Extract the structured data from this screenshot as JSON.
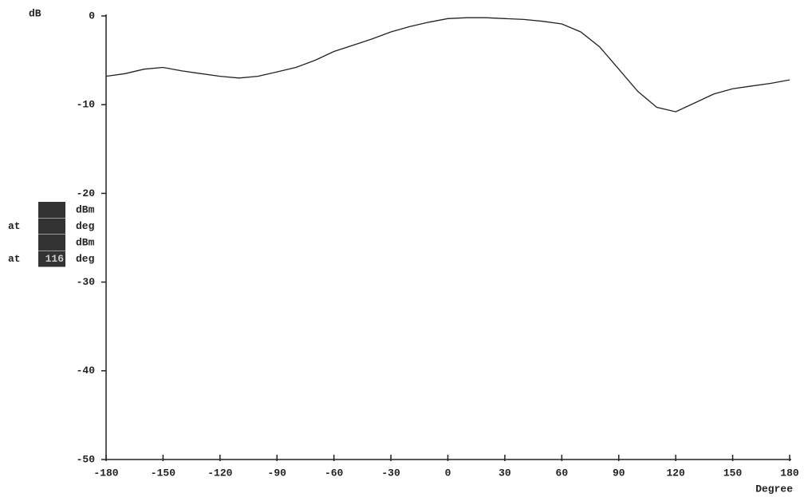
{
  "chart_data": {
    "type": "line",
    "y_label": "dB",
    "x_label": "Degree",
    "x": [
      -180,
      -170,
      -160,
      -150,
      -140,
      -130,
      -120,
      -110,
      -100,
      -90,
      -80,
      -70,
      -60,
      -50,
      -40,
      -30,
      -20,
      -10,
      0,
      10,
      20,
      30,
      40,
      50,
      60,
      70,
      80,
      90,
      100,
      110,
      120,
      130,
      140,
      150,
      160,
      170,
      180
    ],
    "series": [
      {
        "color": "#222222",
        "values": [
          -6.8,
          -6.5,
          -6.0,
          -5.8,
          -6.2,
          -6.5,
          -6.8,
          -7.0,
          -6.8,
          -6.3,
          -5.8,
          -5.0,
          -4.0,
          -3.3,
          -2.6,
          -1.8,
          -1.2,
          -0.7,
          -0.3,
          -0.2,
          -0.2,
          -0.3,
          -0.4,
          -0.6,
          -0.9,
          -1.8,
          -3.5,
          -6.0,
          -8.5,
          -10.3,
          -10.8,
          -9.8,
          -8.8,
          -8.2,
          -7.9,
          -7.6,
          -7.2
        ]
      }
    ],
    "xlim": [
      -180,
      180
    ],
    "xticks": [
      -180,
      -150,
      -120,
      -90,
      -60,
      -30,
      0,
      30,
      60,
      90,
      120,
      150,
      180
    ],
    "ylim": [
      -50,
      0
    ],
    "yticks": [
      0,
      -10,
      -20,
      -30,
      -40,
      -50
    ],
    "readout": [
      {
        "unit": "dBm"
      },
      {
        "prefix": "at",
        "unit": "deg"
      },
      {
        "unit": "dBm"
      },
      {
        "prefix": "at",
        "value": "116",
        "unit": "deg"
      }
    ]
  }
}
